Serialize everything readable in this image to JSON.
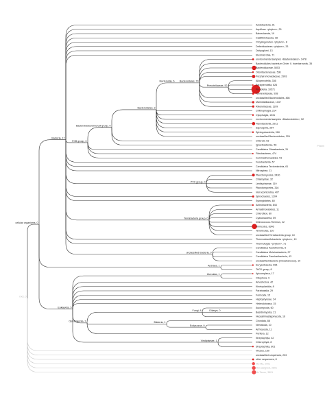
{
  "colors": {
    "branch": "#333333",
    "faint_branch": "#c8c8c8",
    "marker": "#dd1f1f"
  },
  "side_label": "Pharm",
  "leaves": [
    {
      "id": "l0",
      "label": "Acidobacteria, 91",
      "parent": "bacteria",
      "r": 0
    },
    {
      "id": "l1",
      "label": "Aquificae <phylum>, 25",
      "parent": "bacteria",
      "r": 0
    },
    {
      "id": "l2",
      "label": "Balneolaeota, 19",
      "parent": "bacteria",
      "r": 0
    },
    {
      "id": "l3",
      "label": "Caldithrichaeota, 28",
      "parent": "bacteria",
      "r": 0
    },
    {
      "id": "l4",
      "label": "Chrysiogenetes <phylum>, 8",
      "parent": "bacteria",
      "r": 0
    },
    {
      "id": "l5",
      "label": "Deferribacteres <phylum>, 33",
      "parent": "bacteria",
      "r": 0
    },
    {
      "id": "l6",
      "label": "Dictyoglomi, 13",
      "parent": "bacteria",
      "r": 0
    },
    {
      "id": "l7",
      "label": "Elusimicrobia, 71",
      "parent": "bacteria",
      "r": 0
    },
    {
      "id": "l8",
      "label": "environmental samples <Bacteroidales>, 1478",
      "parent": "bacteroidales",
      "r": 1.4
    },
    {
      "id": "l9",
      "label": "Bacteroidales bacterium Order II. Incertae sedis, 35",
      "parent": "bacteroidales",
      "r": 0
    },
    {
      "id": "l10",
      "label": "Bacteroidaceae, 5053",
      "parent": "bacteroidales",
      "r": 3.2
    },
    {
      "id": "l11",
      "label": "Odoribacteraceae, 536",
      "parent": "bacteroidales",
      "r": 1.2
    },
    {
      "id": "l12",
      "label": "Porphyromonadaceae, 2903",
      "parent": "bacteroidales",
      "r": 2.4
    },
    {
      "id": "l13",
      "label": "Alloprevotella, 336",
      "parent": "prevotellaceae",
      "r": 0
    },
    {
      "id": "l14",
      "label": "Paraprevotella, 626",
      "parent": "prevotellaceae",
      "r": 1.0
    },
    {
      "id": "l15",
      "label": "Prevotella, 10571",
      "parent": "prevotellaceae",
      "r": 6.5
    },
    {
      "id": "l16",
      "label": "Tannerellaceae, 938",
      "parent": "prevotellaceae",
      "r": 1.5
    },
    {
      "id": "l17",
      "label": "unclassified Bacteroidales, 466",
      "parent": "bacteroidales",
      "r": 0
    },
    {
      "id": "l18",
      "label": "Marinilabiliaceae, 1347",
      "parent": "bacteroidales",
      "r": 1.6
    },
    {
      "id": "l19",
      "label": "Rikenellaceae, 1199",
      "parent": "bacteroidales",
      "r": 1.6
    },
    {
      "id": "l20",
      "label": "Chitinophagia, 214",
      "parent": "bacteroidetes",
      "r": 0
    },
    {
      "id": "l21",
      "label": "Cytophagia, 1031",
      "parent": "bacteroidetes",
      "r": 1.2
    },
    {
      "id": "l22",
      "label": "environmental samples <Bacteroidetes>, 52",
      "parent": "bacteroidetes",
      "r": 0
    },
    {
      "id": "l23",
      "label": "Flavobacteriia, 2911",
      "parent": "bacteroidetes",
      "r": 2.3
    },
    {
      "id": "l24",
      "label": "Saprospiria, 264",
      "parent": "bacteroidetes",
      "r": 0
    },
    {
      "id": "l25",
      "label": "Sphingobacteriia, 918",
      "parent": "bacteroidetes",
      "r": 1.2
    },
    {
      "id": "l26",
      "label": "unclassified Bacteroidetes, 226",
      "parent": "bacteroidetes",
      "r": 0
    },
    {
      "id": "l27",
      "label": "Chlorobi, 53",
      "parent": "bcg",
      "r": 0
    },
    {
      "id": "l28",
      "label": "Ignavibacteriae, 56",
      "parent": "bcg",
      "r": 0
    },
    {
      "id": "l29",
      "label": "Candidatus Glassbacteria, 31",
      "parent": "fcb",
      "r": 0
    },
    {
      "id": "l30",
      "label": "Fibrobacteres, 474",
      "parent": "fcb",
      "r": 1.0
    },
    {
      "id": "l31",
      "label": "Gemmatimonadetes, 51",
      "parent": "fcb",
      "r": 0
    },
    {
      "id": "l32",
      "label": "Fusobacteriia, 57",
      "parent": "bacteria",
      "r": 0
    },
    {
      "id": "l33",
      "label": "Candidatus Tectomicrobia, 61",
      "parent": "bacteria",
      "r": 0
    },
    {
      "id": "l34",
      "label": "Nitrospirae, 11",
      "parent": "bacteria",
      "r": 0
    },
    {
      "id": "l35",
      "label": "Planctomycetes, 2430",
      "parent": "pvc",
      "r": 2.0
    },
    {
      "id": "l36",
      "label": "Chlamydiae, 32",
      "parent": "pvc",
      "r": 0
    },
    {
      "id": "l37",
      "label": "Lentisphaerae, 119",
      "parent": "pvc",
      "r": 0
    },
    {
      "id": "l38",
      "label": "Planctomycetes, 316",
      "parent": "pvc",
      "r": 0
    },
    {
      "id": "l39",
      "label": "Verrucomicrobia, 407",
      "parent": "pvc",
      "r": 0
    },
    {
      "id": "l40",
      "label": "Spirochaetes, 1204",
      "parent": "bacteria",
      "r": 1.5
    },
    {
      "id": "l41",
      "label": "Synergistetes, 60",
      "parent": "bacteria",
      "r": 0
    },
    {
      "id": "l42",
      "label": "Actinobacteria, 844",
      "parent": "terra",
      "r": 1.1
    },
    {
      "id": "l43",
      "label": "Armatimonadetes, 11",
      "parent": "terra",
      "r": 0
    },
    {
      "id": "l44",
      "label": "Chloroflexi, 80",
      "parent": "terra",
      "r": 0
    },
    {
      "id": "l45",
      "label": "Cyanobacteria, 59",
      "parent": "terra",
      "r": 0
    },
    {
      "id": "l46",
      "label": "Deinococcus-Thermus, 22",
      "parent": "terra",
      "r": 0
    },
    {
      "id": "l47",
      "label": "Firmicutes, 8346",
      "parent": "terra",
      "r": 3.8
    },
    {
      "id": "l48",
      "label": "Tenericutes, 120",
      "parent": "terra",
      "r": 0
    },
    {
      "id": "l49",
      "label": "unclassified Terrabacteria group, 10",
      "parent": "terra",
      "r": 0
    },
    {
      "id": "l50",
      "label": "Thermodesulfobacteria <phylum>, 19",
      "parent": "bacteria",
      "r": 0
    },
    {
      "id": "l51",
      "label": "Thermotogae <phylum>, 71",
      "parent": "bacteria",
      "r": 0
    },
    {
      "id": "l52",
      "label": "Candidatus Acetothermia, 6",
      "parent": "uncbac",
      "r": 0
    },
    {
      "id": "l53",
      "label": "Candidatus Melainabacteria, 27",
      "parent": "uncbac",
      "r": 0
    },
    {
      "id": "l54",
      "label": "Candidatus Saccharibacteria, 43",
      "parent": "uncbac",
      "r": 0
    },
    {
      "id": "l55",
      "label": "unclassified Bacteria (miscellaneous), 19",
      "parent": "uncbac",
      "r": 0
    },
    {
      "id": "l56",
      "label": "Euryarchaeota, 696",
      "parent": "archaea",
      "r": 1.1
    },
    {
      "id": "l57",
      "label": "TACK group, 8",
      "parent": "archaea",
      "r": 0
    },
    {
      "id": "l58",
      "label": "Apicomplexa, 17",
      "parent": "alveolata",
      "r": 0.9
    },
    {
      "id": "l59",
      "label": "Ciliophora, 9",
      "parent": "alveolata",
      "r": 0
    },
    {
      "id": "l60",
      "label": "Amoebozoa, 42",
      "parent": "eukaryota",
      "r": 0
    },
    {
      "id": "l61",
      "label": "Kinetoplastida, 8",
      "parent": "eukaryota",
      "r": 0
    },
    {
      "id": "l62",
      "label": "Parabasalia, 29",
      "parent": "eukaryota",
      "r": 0
    },
    {
      "id": "l63",
      "label": "Fornicata, 15",
      "parent": "eukaryota",
      "r": 0
    },
    {
      "id": "l64",
      "label": "Haptophyceae, 24",
      "parent": "eukaryota",
      "r": 0
    },
    {
      "id": "l65",
      "label": "Heterolobosea, 15",
      "parent": "eukaryota",
      "r": 0
    },
    {
      "id": "l66",
      "label": "Ascomycota, 60",
      "parent": "fungi",
      "r": 0
    },
    {
      "id": "l67",
      "label": "Basidiomycota, 21",
      "parent": "dikarya",
      "r": 0
    },
    {
      "id": "l68",
      "label": "Neocallimastigomycota, 16",
      "parent": "fungi",
      "r": 0
    },
    {
      "id": "l69",
      "label": "Chordata, 88",
      "parent": "bilateria",
      "r": 0
    },
    {
      "id": "l70",
      "label": "Nematoda, 10",
      "parent": "ecdysozoa",
      "r": 0
    },
    {
      "id": "l71",
      "label": "Arthropoda, 11",
      "parent": "ecdysozoa",
      "r": 0
    },
    {
      "id": "l72",
      "label": "Porifera, 12",
      "parent": "opisthokonta",
      "r": 0
    },
    {
      "id": "l73",
      "label": "Streptophyta, 42",
      "parent": "viridiplantae",
      "r": 0
    },
    {
      "id": "l74",
      "label": "Chlorophyta, 8",
      "parent": "viridiplantae",
      "r": 0
    },
    {
      "id": "l75",
      "label": "Streptophyta, 801",
      "parent": "viridiplantae",
      "r": 1.1
    },
    {
      "id": "l76",
      "label": "Viruses, 160",
      "parent": "root",
      "r": 0
    },
    {
      "id": "l77",
      "label": "unclassified sequences, 203",
      "parent": "root",
      "r": 0
    },
    {
      "id": "l78",
      "label": "other sequences, 8",
      "parent": "root",
      "r": 1.4
    },
    {
      "id": "l79",
      "label": "No hits, 2001",
      "parent": "root",
      "r": 2.2,
      "faint": true
    },
    {
      "id": "l80",
      "label": "Not assigned, 2801",
      "parent": "root",
      "r": 2.7,
      "faint": true
    },
    {
      "id": "l81",
      "label": "No Taxon, 3801",
      "parent": "root",
      "r": 3.0,
      "faint": true
    }
  ],
  "internal": [
    {
      "id": "root",
      "label": "root, 0",
      "parent": null,
      "faint": true
    },
    {
      "id": "cellular",
      "label": "cellular organisms, 0",
      "parent": "root"
    },
    {
      "id": "bacteria",
      "label": "Bacteria, 17",
      "parent": "cellular"
    },
    {
      "id": "fcb",
      "label": "FCB group, 0",
      "parent": "bacteria"
    },
    {
      "id": "bcg",
      "label": "Bacteroidetes/Chlorobi group, 0",
      "parent": "fcb"
    },
    {
      "id": "bacteroidetes",
      "label": "Bacteroidetes, 3",
      "parent": "bcg"
    },
    {
      "id": "bacteroidia",
      "label": "Bacteroidia, 6",
      "parent": "bacteroidetes"
    },
    {
      "id": "bacteroidales",
      "label": "Bacteroidales, 79",
      "parent": "bacteroidia"
    },
    {
      "id": "prevotellaceae",
      "label": "Prevotellaceae, 52",
      "parent": "bacteroidales"
    },
    {
      "id": "pvc",
      "label": "PVC group, 0",
      "parent": "bacteria"
    },
    {
      "id": "terra",
      "label": "Terrabacteria group, 0",
      "parent": "bacteria"
    },
    {
      "id": "uncbac",
      "label": "unclassified Bacteria, 0",
      "parent": "bacteria"
    },
    {
      "id": "archaea",
      "label": "Archaea, 1",
      "parent": "cellular"
    },
    {
      "id": "eukaryota",
      "label": "Eukaryota, 5",
      "parent": "cellular"
    },
    {
      "id": "alveolata",
      "label": "Alveolata, 1",
      "parent": "eukaryota"
    },
    {
      "id": "opisthokonta",
      "label": "Opisthokonta, 2",
      "parent": "eukaryota"
    },
    {
      "id": "fungi",
      "label": "Fungi, 8",
      "parent": "opisthokonta"
    },
    {
      "id": "dikarya",
      "label": "Dikarya, 0",
      "parent": "fungi"
    },
    {
      "id": "bilateria",
      "label": "Bilateria, 1",
      "parent": "opisthokonta"
    },
    {
      "id": "ecdysozoa",
      "label": "Ecdysozoa, 0",
      "parent": "bilateria"
    },
    {
      "id": "viridiplantae",
      "label": "Viridiplantae, 1",
      "parent": "eukaryota"
    }
  ]
}
